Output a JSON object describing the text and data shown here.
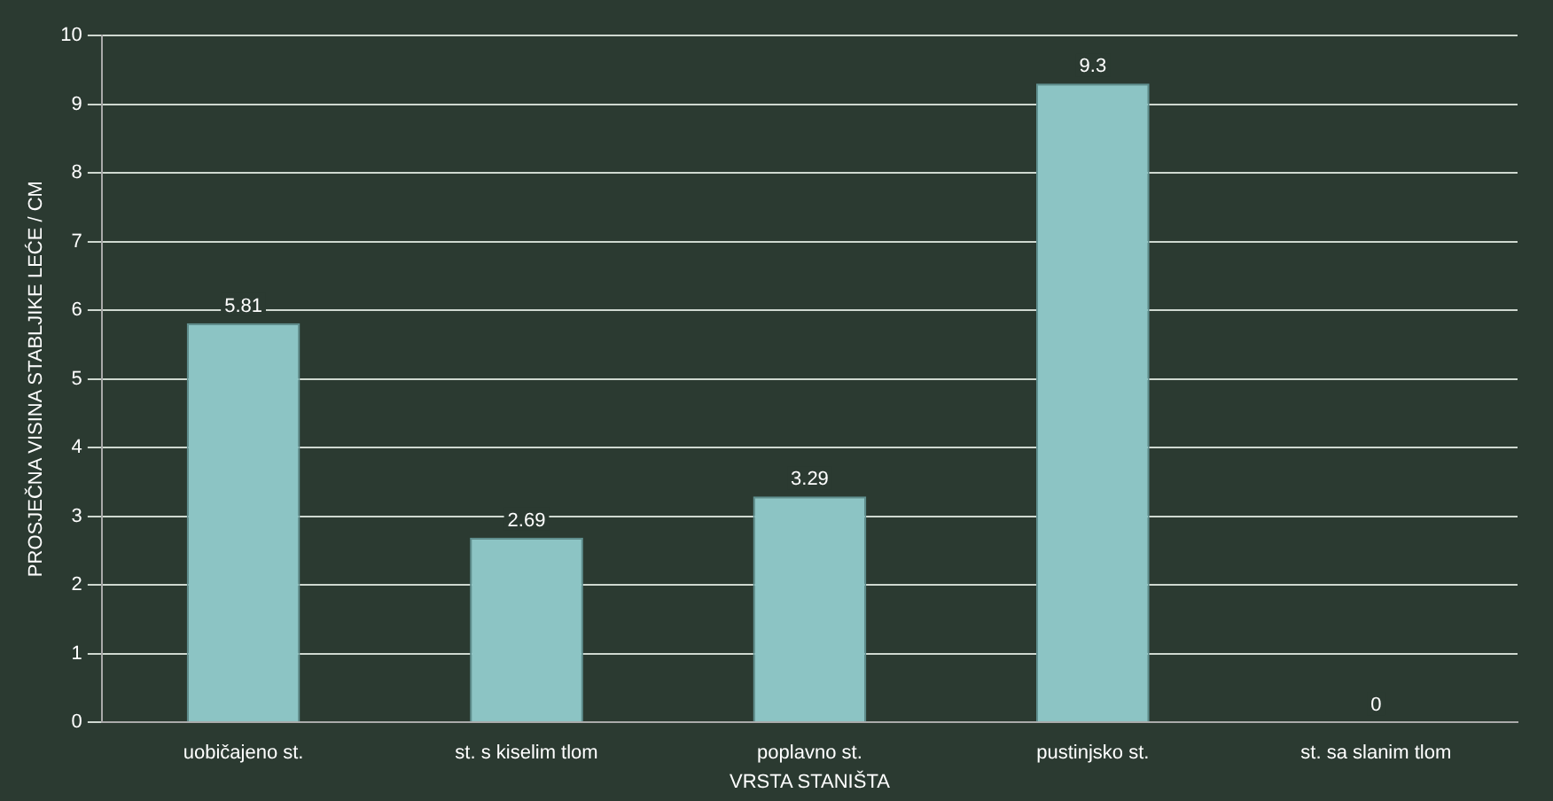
{
  "chart_data": {
    "type": "bar",
    "xlabel": "VRSTA STANIŠTA",
    "ylabel": "PROSJEČNA VISINA STABLJIKE LEĆE / CM",
    "categories": [
      "uobičajeno st.",
      "st. s kiselim tlom",
      "poplavno st.",
      "pustinjsko st.",
      "st. sa slanim tlom"
    ],
    "values": [
      5.81,
      2.69,
      3.29,
      9.3,
      0
    ],
    "color": "#8cc4c4",
    "ylim": [
      0,
      10
    ],
    "yticks": [
      0,
      1,
      2,
      3,
      4,
      5,
      6,
      7,
      8,
      9,
      10
    ],
    "grid": "y",
    "data_labels": true
  }
}
